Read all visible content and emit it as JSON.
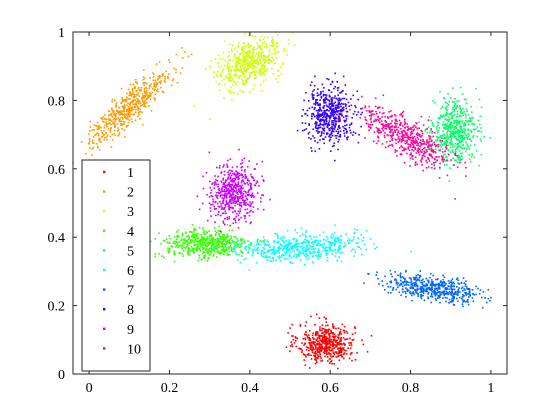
{
  "chart_data": {
    "type": "scatter",
    "title": "",
    "xlabel": "",
    "ylabel": "",
    "xlim": [
      -0.04,
      1.04
    ],
    "ylim": [
      0,
      1
    ],
    "xticks": [
      "0",
      "0.2",
      "0.4",
      "0.6",
      "0.8",
      "1"
    ],
    "yticks": [
      "0",
      "0.2",
      "0.4",
      "0.6",
      "0.8",
      "1"
    ],
    "xtick_values": [
      0,
      0.2,
      0.4,
      0.6,
      0.8,
      1
    ],
    "ytick_values": [
      0,
      0.2,
      0.4,
      0.6,
      0.8,
      1
    ],
    "grid": false,
    "legend_position": "left",
    "series": [
      {
        "name": "1",
        "color": "#ff0000",
        "center": [
          0.59,
          0.09
        ],
        "spread": [
          0.035,
          0.028
        ],
        "angle": 0
      },
      {
        "name": "2",
        "color": "#ff9900",
        "center": [
          0.1,
          0.78
        ],
        "spread": [
          0.075,
          0.018
        ],
        "angle": 48
      },
      {
        "name": "3",
        "color": "#ccff00",
        "center": [
          0.4,
          0.91
        ],
        "spread": [
          0.045,
          0.028
        ],
        "angle": 35
      },
      {
        "name": "4",
        "color": "#33ff00",
        "center": [
          0.29,
          0.38
        ],
        "spread": [
          0.055,
          0.022
        ],
        "angle": 0
      },
      {
        "name": "5",
        "color": "#00ff66",
        "center": [
          0.91,
          0.71
        ],
        "spread": [
          0.028,
          0.045
        ],
        "angle": 0
      },
      {
        "name": "6",
        "color": "#00ffff",
        "center": [
          0.52,
          0.37
        ],
        "spread": [
          0.075,
          0.02
        ],
        "angle": 3
      },
      {
        "name": "7",
        "color": "#0066ff",
        "center": [
          0.86,
          0.25
        ],
        "spread": [
          0.06,
          0.016
        ],
        "angle": -10
      },
      {
        "name": "8",
        "color": "#3300ff",
        "center": [
          0.6,
          0.76
        ],
        "spread": [
          0.03,
          0.04
        ],
        "angle": 0
      },
      {
        "name": "9",
        "color": "#cc00ff",
        "center": [
          0.36,
          0.53
        ],
        "spread": [
          0.03,
          0.04
        ],
        "angle": -15
      },
      {
        "name": "10",
        "color": "#ff0099",
        "center": [
          0.79,
          0.69
        ],
        "spread": [
          0.065,
          0.025
        ],
        "angle": -38
      }
    ]
  }
}
